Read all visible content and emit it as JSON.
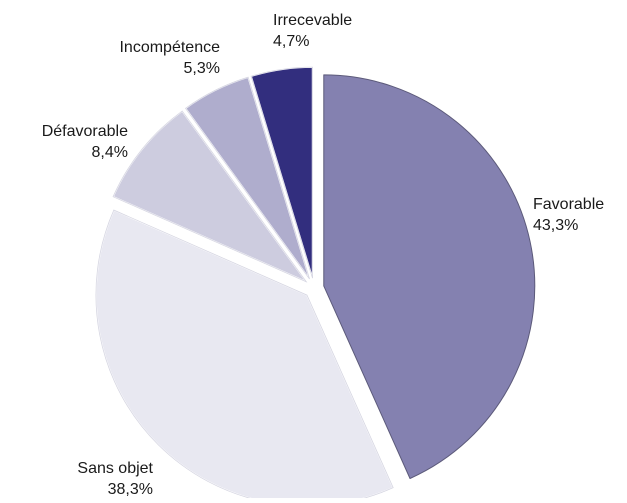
{
  "chart_data": {
    "type": "pie",
    "exploded": true,
    "slices": [
      {
        "label": "Favorable",
        "value": 43.3,
        "value_label": "43,3%",
        "color": "#8481b0"
      },
      {
        "label": "Sans objet",
        "value": 38.3,
        "value_label": "38,3%",
        "color": "#e8e8f1"
      },
      {
        "label": "Défavorable",
        "value": 8.4,
        "value_label": "8,4%",
        "color": "#cdccdf"
      },
      {
        "label": "Incompétence",
        "value": 5.3,
        "value_label": "5,3%",
        "color": "#afadcd"
      },
      {
        "label": "Irrecevable",
        "value": 4.7,
        "value_label": "4,7%",
        "color": "#322e7e"
      }
    ],
    "start_angle": "12 o'clock",
    "direction": "clockwise",
    "grid": false,
    "legend": "none"
  }
}
